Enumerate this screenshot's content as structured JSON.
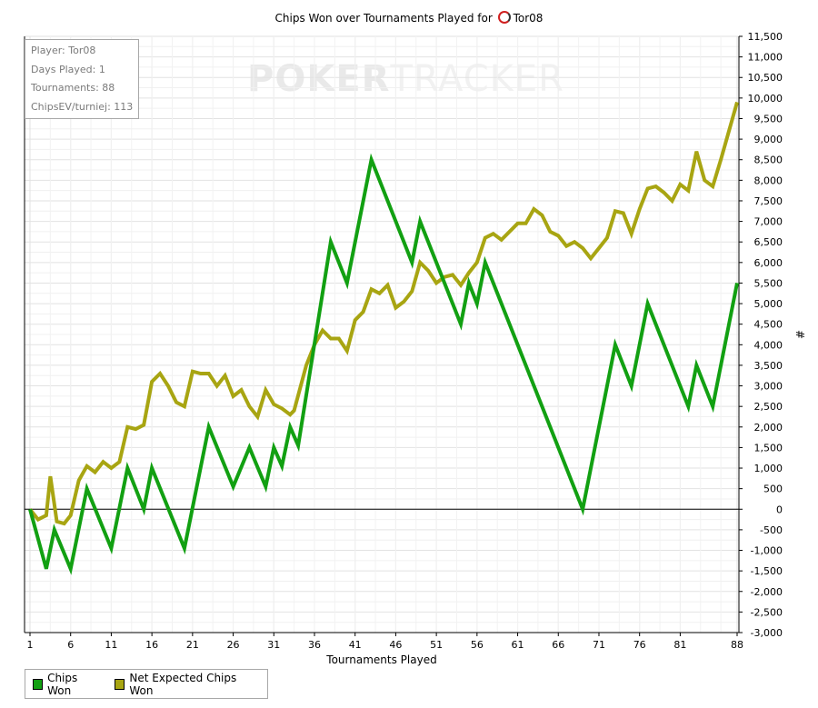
{
  "chart_data": {
    "type": "line",
    "title": "Chips Won over Tournaments Played for",
    "title_player": "Tor08",
    "xlabel": "Tournaments Played",
    "ylabel": "#",
    "xlim": [
      1,
      88
    ],
    "ylim": [
      -3000,
      11500
    ],
    "x_ticks": [
      1,
      6,
      11,
      16,
      21,
      26,
      31,
      36,
      41,
      46,
      51,
      56,
      61,
      66,
      71,
      76,
      81,
      88
    ],
    "y_ticks": [
      -3000,
      -2500,
      -2000,
      -1500,
      -1000,
      -500,
      0,
      500,
      1000,
      1500,
      2000,
      2500,
      3000,
      3500,
      4000,
      4500,
      5000,
      5500,
      6000,
      6500,
      7000,
      7500,
      8000,
      8500,
      9000,
      9500,
      10000,
      10500,
      11000,
      11500
    ],
    "y_tick_labels": [
      "-3,000",
      "-2,500",
      "-2,000",
      "-1,500",
      "-1,000",
      "-500",
      "0",
      "500",
      "1,000",
      "1,500",
      "2,000",
      "2,500",
      "3,000",
      "3,500",
      "4,000",
      "4,500",
      "5,000",
      "5,500",
      "6,000",
      "6,500",
      "7,000",
      "7,500",
      "8,000",
      "8,500",
      "9,000",
      "9,500",
      "10,000",
      "10,500",
      "11,000",
      "11,500"
    ],
    "grid": true,
    "legend_position": "bottom-left",
    "series": [
      {
        "name": "Chips Won",
        "color": "#12a012",
        "points": [
          [
            1,
            0
          ],
          [
            3,
            -1450
          ],
          [
            4,
            -500
          ],
          [
            6,
            -1450
          ],
          [
            8,
            500
          ],
          [
            11,
            -950
          ],
          [
            13,
            1000
          ],
          [
            15,
            0
          ],
          [
            16,
            1000
          ],
          [
            20,
            -950
          ],
          [
            23,
            2000
          ],
          [
            26,
            550
          ],
          [
            28,
            1500
          ],
          [
            30,
            550
          ],
          [
            31,
            1500
          ],
          [
            32,
            1050
          ],
          [
            33,
            2000
          ],
          [
            34,
            1550
          ],
          [
            38,
            6500
          ],
          [
            40,
            5500
          ],
          [
            43,
            8500
          ],
          [
            48,
            6000
          ],
          [
            49,
            7000
          ],
          [
            54,
            4500
          ],
          [
            55,
            5500
          ],
          [
            56,
            5000
          ],
          [
            57,
            6000
          ],
          [
            69,
            0
          ],
          [
            73,
            4000
          ],
          [
            75,
            3000
          ],
          [
            77,
            5000
          ],
          [
            82,
            2500
          ],
          [
            83,
            3500
          ],
          [
            85,
            2500
          ],
          [
            88,
            5500
          ]
        ]
      },
      {
        "name": "Net Expected Chips Won",
        "color": "#a8a512",
        "points": [
          [
            1,
            0
          ],
          [
            2,
            -250
          ],
          [
            3,
            -150
          ],
          [
            3.5,
            800
          ],
          [
            4.3,
            -300
          ],
          [
            5.2,
            -350
          ],
          [
            6,
            -150
          ],
          [
            7,
            700
          ],
          [
            8,
            1050
          ],
          [
            9,
            900
          ],
          [
            10,
            1150
          ],
          [
            11,
            1000
          ],
          [
            12,
            1150
          ],
          [
            13,
            2000
          ],
          [
            14,
            1950
          ],
          [
            15,
            2050
          ],
          [
            16,
            3100
          ],
          [
            17,
            3300
          ],
          [
            18,
            3000
          ],
          [
            19,
            2600
          ],
          [
            20,
            2500
          ],
          [
            21,
            3350
          ],
          [
            22,
            3300
          ],
          [
            23,
            3300
          ],
          [
            24,
            3000
          ],
          [
            25,
            3250
          ],
          [
            26,
            2750
          ],
          [
            27,
            2900
          ],
          [
            28,
            2500
          ],
          [
            29,
            2250
          ],
          [
            30,
            2900
          ],
          [
            31,
            2550
          ],
          [
            32,
            2450
          ],
          [
            33,
            2300
          ],
          [
            33.5,
            2400
          ],
          [
            35,
            3500
          ],
          [
            36,
            4000
          ],
          [
            37,
            4350
          ],
          [
            38,
            4150
          ],
          [
            39,
            4150
          ],
          [
            40,
            3850
          ],
          [
            41,
            4600
          ],
          [
            42,
            4800
          ],
          [
            43,
            5350
          ],
          [
            44,
            5250
          ],
          [
            45,
            5450
          ],
          [
            46,
            4900
          ],
          [
            47,
            5050
          ],
          [
            48,
            5300
          ],
          [
            49,
            6000
          ],
          [
            50,
            5800
          ],
          [
            51,
            5500
          ],
          [
            52,
            5650
          ],
          [
            53,
            5700
          ],
          [
            54,
            5450
          ],
          [
            55,
            5750
          ],
          [
            56,
            6000
          ],
          [
            57,
            6600
          ],
          [
            58,
            6700
          ],
          [
            59,
            6550
          ],
          [
            60,
            6750
          ],
          [
            61,
            6950
          ],
          [
            62,
            6950
          ],
          [
            63,
            7300
          ],
          [
            64,
            7150
          ],
          [
            65,
            6750
          ],
          [
            66,
            6650
          ],
          [
            67,
            6400
          ],
          [
            68,
            6500
          ],
          [
            69,
            6350
          ],
          [
            70,
            6100
          ],
          [
            71,
            6350
          ],
          [
            72,
            6600
          ],
          [
            73,
            7250
          ],
          [
            74,
            7200
          ],
          [
            75,
            6700
          ],
          [
            76,
            7300
          ],
          [
            77,
            7800
          ],
          [
            78,
            7850
          ],
          [
            79,
            7700
          ],
          [
            80,
            7500
          ],
          [
            81,
            7900
          ],
          [
            82,
            7750
          ],
          [
            83,
            8700
          ],
          [
            84,
            8000
          ],
          [
            85,
            7850
          ],
          [
            86,
            8500
          ],
          [
            88,
            9900
          ]
        ]
      }
    ]
  },
  "infobox": {
    "player": "Player: Tor08",
    "days": "Days Played: 1",
    "tournaments": "Tournaments: 88",
    "chipsev": "ChipsEV/turniej: 113"
  },
  "watermark": {
    "part1": "POKER",
    "part2": "TRACKER"
  }
}
